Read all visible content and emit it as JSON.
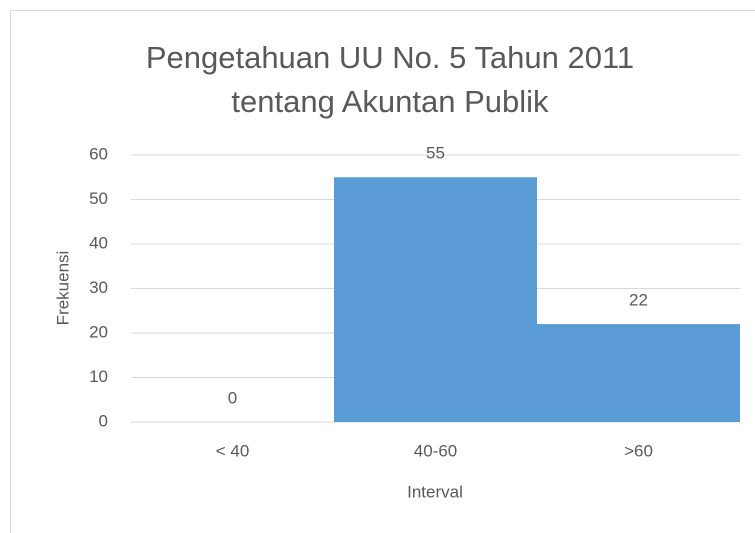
{
  "chart_data": {
    "type": "bar",
    "title": [
      "Pengetahuan UU No. 5 Tahun 2011",
      "tentang Akuntan Publik"
    ],
    "x_label": "Interval",
    "y_label": "Frekuensi",
    "categories": [
      "< 40",
      "40-60",
      ">60"
    ],
    "values": [
      0,
      55,
      22
    ],
    "color": "#5b9bd5",
    "ylim": [
      0,
      60
    ],
    "yticks": [
      0,
      10,
      20,
      30,
      40,
      50,
      60
    ],
    "grid": true
  }
}
